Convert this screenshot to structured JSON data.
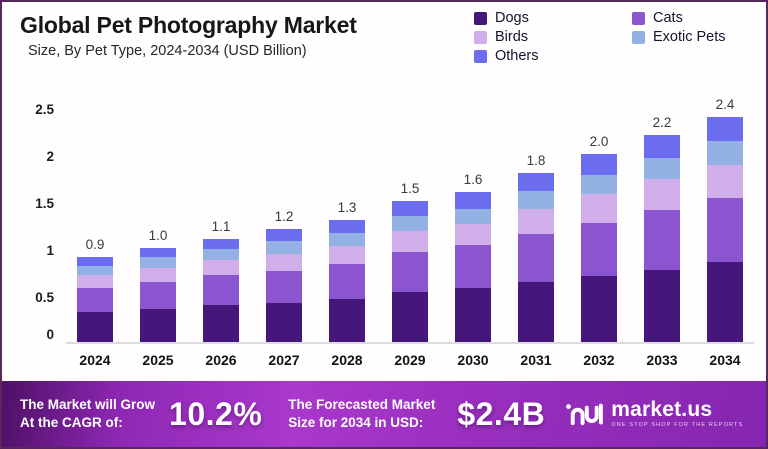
{
  "header": {
    "title": "Global Pet Photography Market",
    "subtitle": "Size, By Pet Type, 2024-2034 (USD Billion)"
  },
  "chart_data": {
    "type": "bar",
    "stacked": true,
    "title": "Global Pet Photography Market Size, By Pet Type, 2024-2034 (USD Billion)",
    "categories": [
      "2024",
      "2025",
      "2026",
      "2027",
      "2028",
      "2029",
      "2030",
      "2031",
      "2032",
      "2033",
      "2034"
    ],
    "totals": [
      "0.9",
      "1.0",
      "1.1",
      "1.2",
      "1.3",
      "1.5",
      "1.6",
      "1.8",
      "2.0",
      "2.2",
      "2.4"
    ],
    "series": [
      {
        "name": "Dogs",
        "color": "#45177a",
        "values": [
          0.32,
          0.35,
          0.39,
          0.42,
          0.46,
          0.53,
          0.57,
          0.64,
          0.7,
          0.77,
          0.85
        ]
      },
      {
        "name": "Cats",
        "color": "#8a55cf",
        "values": [
          0.26,
          0.29,
          0.32,
          0.34,
          0.37,
          0.43,
          0.46,
          0.51,
          0.57,
          0.63,
          0.68
        ]
      },
      {
        "name": "Birds",
        "color": "#cfaeea",
        "values": [
          0.13,
          0.15,
          0.16,
          0.18,
          0.19,
          0.22,
          0.23,
          0.27,
          0.3,
          0.33,
          0.35
        ]
      },
      {
        "name": "Exotic Pets",
        "color": "#93b1e2",
        "values": [
          0.1,
          0.11,
          0.12,
          0.13,
          0.14,
          0.16,
          0.16,
          0.19,
          0.21,
          0.23,
          0.26
        ]
      },
      {
        "name": "Others",
        "color": "#6c6cee",
        "values": [
          0.09,
          0.1,
          0.11,
          0.13,
          0.14,
          0.16,
          0.18,
          0.19,
          0.22,
          0.24,
          0.26
        ]
      }
    ],
    "xlabel": "",
    "ylabel": "",
    "ylim": [
      0,
      2.5
    ],
    "yticks": [
      0,
      0.5,
      1,
      1.5,
      2,
      2.5
    ],
    "ytick_labels": [
      "0",
      "0.5",
      "1",
      "1.5",
      "2",
      "2.5"
    ],
    "grid": false,
    "legend_position": "top-right"
  },
  "footer": {
    "cagr_label_line1": "The Market will Grow",
    "cagr_label_line2": "At the CAGR of:",
    "cagr_value": "10.2%",
    "forecast_label_line1": "The Forecasted Market",
    "forecast_label_line2": "Size for 2034 in USD:",
    "forecast_value": "$2.4B",
    "logo_text": "market.us",
    "logo_tagline": "ONE STOP SHOP FOR THE REPORTS"
  },
  "colors": {
    "footer_gradient_start": "#4e1065",
    "footer_gradient_mid": "#a938cb",
    "footer_gradient_end": "#8526b0",
    "frame_border": "#59265e",
    "baseline": "#dcdcdc"
  }
}
